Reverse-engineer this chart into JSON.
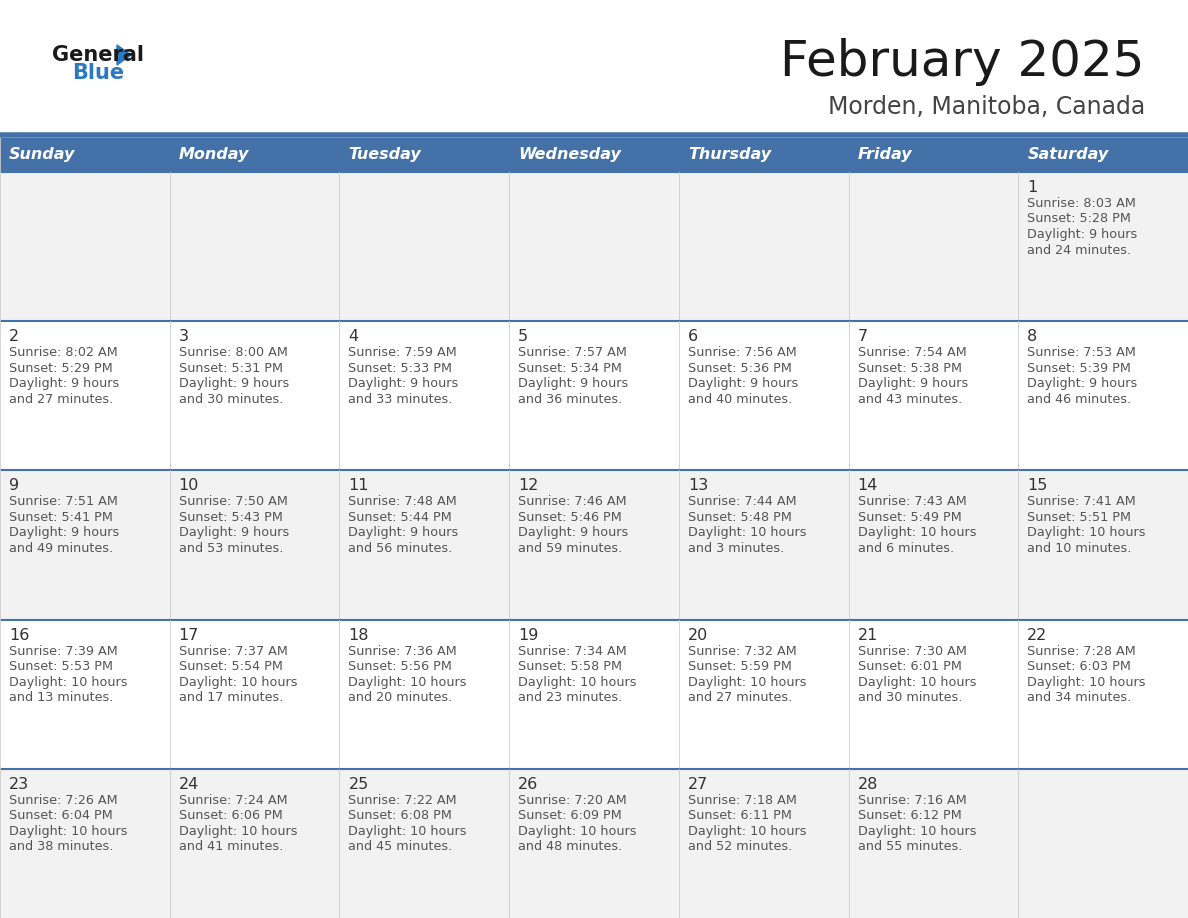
{
  "title": "February 2025",
  "subtitle": "Morden, Manitoba, Canada",
  "header_bg": "#4472a8",
  "header_text": "#ffffff",
  "header_days": [
    "Sunday",
    "Monday",
    "Tuesday",
    "Wednesday",
    "Thursday",
    "Friday",
    "Saturday"
  ],
  "row_bg_odd": "#f2f2f2",
  "row_bg_even": "#ffffff",
  "cell_text_color": "#555555",
  "divider_color": "#4472a8",
  "logo_general_color": "#1a1a1a",
  "logo_blue_color": "#2b79c2",
  "weeks": [
    [
      null,
      null,
      null,
      null,
      null,
      null,
      1
    ],
    [
      2,
      3,
      4,
      5,
      6,
      7,
      8
    ],
    [
      9,
      10,
      11,
      12,
      13,
      14,
      15
    ],
    [
      16,
      17,
      18,
      19,
      20,
      21,
      22
    ],
    [
      23,
      24,
      25,
      26,
      27,
      28,
      null
    ]
  ],
  "cell_data": {
    "1": {
      "sunrise": "8:03 AM",
      "sunset": "5:28 PM",
      "daylight": "9 hours and 24 minutes."
    },
    "2": {
      "sunrise": "8:02 AM",
      "sunset": "5:29 PM",
      "daylight": "9 hours and 27 minutes."
    },
    "3": {
      "sunrise": "8:00 AM",
      "sunset": "5:31 PM",
      "daylight": "9 hours and 30 minutes."
    },
    "4": {
      "sunrise": "7:59 AM",
      "sunset": "5:33 PM",
      "daylight": "9 hours and 33 minutes."
    },
    "5": {
      "sunrise": "7:57 AM",
      "sunset": "5:34 PM",
      "daylight": "9 hours and 36 minutes."
    },
    "6": {
      "sunrise": "7:56 AM",
      "sunset": "5:36 PM",
      "daylight": "9 hours and 40 minutes."
    },
    "7": {
      "sunrise": "7:54 AM",
      "sunset": "5:38 PM",
      "daylight": "9 hours and 43 minutes."
    },
    "8": {
      "sunrise": "7:53 AM",
      "sunset": "5:39 PM",
      "daylight": "9 hours and 46 minutes."
    },
    "9": {
      "sunrise": "7:51 AM",
      "sunset": "5:41 PM",
      "daylight": "9 hours and 49 minutes."
    },
    "10": {
      "sunrise": "7:50 AM",
      "sunset": "5:43 PM",
      "daylight": "9 hours and 53 minutes."
    },
    "11": {
      "sunrise": "7:48 AM",
      "sunset": "5:44 PM",
      "daylight": "9 hours and 56 minutes."
    },
    "12": {
      "sunrise": "7:46 AM",
      "sunset": "5:46 PM",
      "daylight": "9 hours and 59 minutes."
    },
    "13": {
      "sunrise": "7:44 AM",
      "sunset": "5:48 PM",
      "daylight": "10 hours and 3 minutes."
    },
    "14": {
      "sunrise": "7:43 AM",
      "sunset": "5:49 PM",
      "daylight": "10 hours and 6 minutes."
    },
    "15": {
      "sunrise": "7:41 AM",
      "sunset": "5:51 PM",
      "daylight": "10 hours and 10 minutes."
    },
    "16": {
      "sunrise": "7:39 AM",
      "sunset": "5:53 PM",
      "daylight": "10 hours and 13 minutes."
    },
    "17": {
      "sunrise": "7:37 AM",
      "sunset": "5:54 PM",
      "daylight": "10 hours and 17 minutes."
    },
    "18": {
      "sunrise": "7:36 AM",
      "sunset": "5:56 PM",
      "daylight": "10 hours and 20 minutes."
    },
    "19": {
      "sunrise": "7:34 AM",
      "sunset": "5:58 PM",
      "daylight": "10 hours and 23 minutes."
    },
    "20": {
      "sunrise": "7:32 AM",
      "sunset": "5:59 PM",
      "daylight": "10 hours and 27 minutes."
    },
    "21": {
      "sunrise": "7:30 AM",
      "sunset": "6:01 PM",
      "daylight": "10 hours and 30 minutes."
    },
    "22": {
      "sunrise": "7:28 AM",
      "sunset": "6:03 PM",
      "daylight": "10 hours and 34 minutes."
    },
    "23": {
      "sunrise": "7:26 AM",
      "sunset": "6:04 PM",
      "daylight": "10 hours and 38 minutes."
    },
    "24": {
      "sunrise": "7:24 AM",
      "sunset": "6:06 PM",
      "daylight": "10 hours and 41 minutes."
    },
    "25": {
      "sunrise": "7:22 AM",
      "sunset": "6:08 PM",
      "daylight": "10 hours and 45 minutes."
    },
    "26": {
      "sunrise": "7:20 AM",
      "sunset": "6:09 PM",
      "daylight": "10 hours and 48 minutes."
    },
    "27": {
      "sunrise": "7:18 AM",
      "sunset": "6:11 PM",
      "daylight": "10 hours and 52 minutes."
    },
    "28": {
      "sunrise": "7:16 AM",
      "sunset": "6:12 PM",
      "daylight": "10 hours and 55 minutes."
    }
  }
}
